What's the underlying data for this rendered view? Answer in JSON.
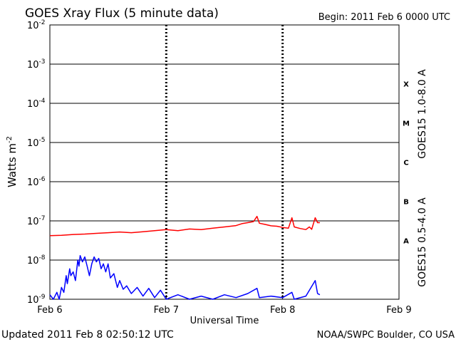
{
  "chart_data": {
    "type": "line",
    "title": "GOES Xray Flux (5 minute data)",
    "begin_label": "Begin:  2011 Feb 6 0000 UTC",
    "ylabel_base": "Watts m",
    "ylabel_exp": "-2",
    "xlabel": "Universal Time",
    "yscale": "log",
    "ylim": [
      1e-09,
      0.01
    ],
    "y_tick_exponents": [
      "-2",
      "-3",
      "-4",
      "-5",
      "-6",
      "-7",
      "-8",
      "-9"
    ],
    "x_tick_labels": [
      "Feb 6",
      "Feb 7",
      "Feb 8",
      "Feb 9"
    ],
    "xlim_days": [
      0,
      3
    ],
    "flare_classes": [
      "X",
      "M",
      "C",
      "B",
      "A"
    ],
    "footer_left": "Updated 2011 Feb  8 02:50:12 UTC",
    "footer_right": "NOAA/SWPC Boulder, CO USA",
    "series": [
      {
        "name": "GOES15 1.0-8.0 A",
        "color": "#ff0000",
        "points": [
          [
            0.0,
            4.2e-08
          ],
          [
            0.1,
            4.3e-08
          ],
          [
            0.2,
            4.5e-08
          ],
          [
            0.3,
            4.6e-08
          ],
          [
            0.4,
            4.8e-08
          ],
          [
            0.5,
            5e-08
          ],
          [
            0.6,
            5.2e-08
          ],
          [
            0.7,
            5e-08
          ],
          [
            0.8,
            5.3e-08
          ],
          [
            0.9,
            5.6e-08
          ],
          [
            1.0,
            6e-08
          ],
          [
            1.1,
            5.6e-08
          ],
          [
            1.2,
            6.2e-08
          ],
          [
            1.3,
            6e-08
          ],
          [
            1.4,
            6.5e-08
          ],
          [
            1.5,
            7e-08
          ],
          [
            1.6,
            7.6e-08
          ],
          [
            1.65,
            8.5e-08
          ],
          [
            1.7,
            9e-08
          ],
          [
            1.75,
            9.6e-08
          ],
          [
            1.78,
            1.3e-07
          ],
          [
            1.8,
            8.7e-08
          ],
          [
            1.85,
            8.1e-08
          ],
          [
            1.9,
            7.5e-08
          ],
          [
            1.95,
            7.3e-08
          ],
          [
            2.0,
            6.8e-08
          ],
          [
            2.05,
            6.5e-08
          ],
          [
            2.08,
            1.2e-07
          ],
          [
            2.1,
            7e-08
          ],
          [
            2.15,
            6.4e-08
          ],
          [
            2.2,
            6e-08
          ],
          [
            2.23,
            7e-08
          ],
          [
            2.25,
            6.1e-08
          ],
          [
            2.28,
            1.2e-07
          ],
          [
            2.3,
            9e-08
          ],
          [
            2.32,
            9e-08
          ]
        ]
      },
      {
        "name": "GOES15 0.5-4.0 A",
        "color": "#0000ff",
        "points": [
          [
            0.0,
            1.3e-09
          ],
          [
            0.03,
            1e-09
          ],
          [
            0.06,
            1.5e-09
          ],
          [
            0.08,
            1e-09
          ],
          [
            0.1,
            2e-09
          ],
          [
            0.12,
            1.5e-09
          ],
          [
            0.14,
            4e-09
          ],
          [
            0.15,
            2.5e-09
          ],
          [
            0.17,
            6e-09
          ],
          [
            0.18,
            4e-09
          ],
          [
            0.2,
            5e-09
          ],
          [
            0.22,
            3e-09
          ],
          [
            0.24,
            1e-08
          ],
          [
            0.25,
            7e-09
          ],
          [
            0.26,
            1.3e-08
          ],
          [
            0.28,
            9e-09
          ],
          [
            0.3,
            1.2e-08
          ],
          [
            0.32,
            7e-09
          ],
          [
            0.34,
            4e-09
          ],
          [
            0.36,
            8e-09
          ],
          [
            0.38,
            1.2e-08
          ],
          [
            0.4,
            9e-09
          ],
          [
            0.42,
            1.1e-08
          ],
          [
            0.44,
            6e-09
          ],
          [
            0.46,
            8e-09
          ],
          [
            0.48,
            5e-09
          ],
          [
            0.5,
            8e-09
          ],
          [
            0.52,
            3.5e-09
          ],
          [
            0.55,
            4.5e-09
          ],
          [
            0.58,
            2e-09
          ],
          [
            0.6,
            3e-09
          ],
          [
            0.63,
            1.8e-09
          ],
          [
            0.66,
            2.2e-09
          ],
          [
            0.7,
            1.4e-09
          ],
          [
            0.75,
            2e-09
          ],
          [
            0.8,
            1.2e-09
          ],
          [
            0.85,
            1.9e-09
          ],
          [
            0.9,
            1.1e-09
          ],
          [
            0.95,
            1.7e-09
          ],
          [
            1.0,
            1e-09
          ],
          [
            1.1,
            1.3e-09
          ],
          [
            1.2,
            1e-09
          ],
          [
            1.3,
            1.2e-09
          ],
          [
            1.4,
            1e-09
          ],
          [
            1.5,
            1.3e-09
          ],
          [
            1.6,
            1.1e-09
          ],
          [
            1.7,
            1.4e-09
          ],
          [
            1.78,
            1.9e-09
          ],
          [
            1.8,
            1.1e-09
          ],
          [
            1.9,
            1.2e-09
          ],
          [
            2.0,
            1.1e-09
          ],
          [
            2.08,
            1.5e-09
          ],
          [
            2.1,
            1e-09
          ],
          [
            2.2,
            1.2e-09
          ],
          [
            2.28,
            3e-09
          ],
          [
            2.3,
            1.4e-09
          ],
          [
            2.32,
            1.3e-09
          ]
        ]
      }
    ]
  }
}
